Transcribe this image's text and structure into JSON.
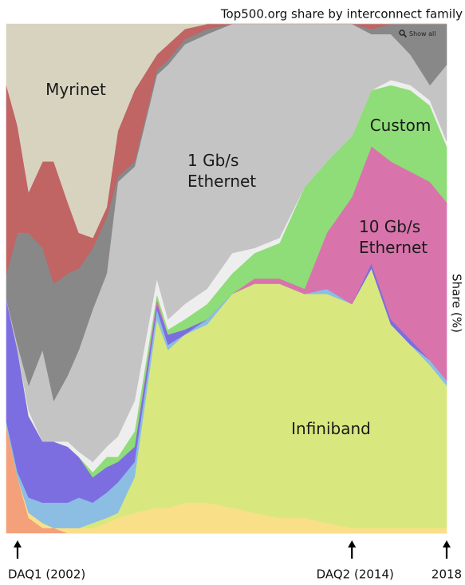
{
  "chart_data": {
    "type": "area",
    "stacked": true,
    "title": "Top500.org share by interconnect family",
    "ylabel": "Share (%)",
    "button": "Show all",
    "x": [
      2001.6,
      2002.0,
      2002.4,
      2002.9,
      2003.3,
      2003.8,
      2004.2,
      2004.7,
      2005.2,
      2005.6,
      2006.2,
      2007.0,
      2007.4,
      2008.0,
      2008.8,
      2009.7,
      2010.5,
      2011.4,
      2012.3,
      2013.1,
      2014.0,
      2014.7,
      2015.4,
      2016.1,
      2016.8,
      2017.4
    ],
    "xlim": [
      2001.6,
      2017.4
    ],
    "ylim": [
      0,
      100
    ],
    "series": [
      {
        "color": "#f4a07a",
        "values": [
          21,
          11,
          3,
          1,
          1,
          0,
          0,
          0,
          0,
          0,
          0,
          0,
          0,
          0,
          0,
          0,
          0,
          0,
          0,
          0,
          0,
          0,
          0,
          0,
          0,
          0
        ]
      },
      {
        "color": "#f9df88",
        "values": [
          0,
          0,
          1,
          1,
          0,
          1,
          1,
          1,
          2,
          3,
          4,
          5,
          5,
          6,
          6,
          5,
          4,
          3,
          3,
          2,
          1,
          1,
          1,
          1,
          1,
          1
        ]
      },
      {
        "name": "Infiniband",
        "color": "#d8e87e",
        "values": [
          0,
          0,
          0,
          0,
          0,
          0,
          0,
          1,
          1,
          1,
          7,
          37,
          31,
          33,
          35,
          42,
          45,
          46,
          44,
          45,
          44,
          51,
          40,
          36,
          32,
          28
        ]
      },
      {
        "color": "#8cbde3",
        "values": [
          1,
          1,
          3,
          4,
          5,
          5,
          6,
          4,
          5,
          6,
          3,
          2,
          1,
          0,
          1,
          0,
          0,
          0,
          0,
          1,
          0,
          0,
          0,
          0,
          1,
          1
        ]
      },
      {
        "color": "#7c6ee0",
        "values": [
          24,
          24,
          16,
          12,
          12,
          11,
          8,
          5,
          5,
          4,
          3,
          1,
          2,
          1,
          0,
          0,
          0,
          0,
          0,
          0,
          0,
          1,
          1,
          1,
          0,
          0
        ]
      },
      {
        "name": "10 Gb/s Ethernet",
        "color": "#d874ab",
        "values": [
          0,
          0,
          0,
          0,
          0,
          0,
          0,
          0,
          0,
          0,
          0,
          1,
          0,
          0,
          0,
          0,
          1,
          1,
          1,
          11,
          21,
          23,
          31,
          33,
          35,
          35
        ]
      },
      {
        "name": "Custom",
        "color": "#8edd78",
        "values": [
          0,
          0,
          0,
          0,
          0,
          0,
          0,
          1,
          2,
          1,
          3,
          1,
          1,
          2,
          3,
          4,
          5,
          7,
          20,
          14,
          12,
          11,
          15,
          16,
          15,
          11
        ]
      },
      {
        "color": "#eeeeee",
        "values": [
          0,
          0,
          1,
          0,
          0,
          1,
          1,
          2,
          2,
          4,
          6,
          3,
          2,
          3,
          3,
          4,
          1,
          1,
          0,
          0,
          0,
          0,
          1,
          1,
          1,
          1
        ]
      },
      {
        "name": "1 Gb/s Ethernet",
        "color": "#c4c4c4",
        "values": [
          0,
          1,
          5,
          18,
          8,
          13,
          20,
          30,
          34,
          50,
          46,
          40,
          50,
          51,
          50,
          45,
          44,
          42,
          32,
          27,
          22,
          11,
          9,
          6,
          3,
          15
        ]
      },
      {
        "color": "#888888",
        "values": [
          5,
          22,
          30,
          20,
          23,
          20,
          16,
          12,
          11,
          1,
          1,
          1,
          1,
          1,
          1,
          0,
          0,
          0,
          0,
          0,
          0,
          1,
          2,
          6,
          12,
          8
        ]
      },
      {
        "color": "#c06464",
        "values": [
          37,
          21,
          8,
          17,
          24,
          14,
          7,
          2,
          2,
          9,
          14,
          3,
          3,
          2,
          1,
          0,
          0,
          0,
          0,
          0,
          0,
          1,
          0,
          0,
          0,
          0
        ]
      },
      {
        "name": "Myrinet",
        "color": "#d8d3bf",
        "values": [
          12,
          20,
          33,
          27,
          27,
          35,
          41,
          42,
          36,
          21,
          13,
          6,
          4,
          1,
          0,
          0,
          0,
          0,
          0,
          0,
          0,
          0,
          0,
          0,
          0,
          0
        ]
      }
    ],
    "annotations": [
      {
        "text": "DAQ1 (2002)",
        "x": 2002
      },
      {
        "text": "DAQ2 (2014)",
        "x": 2014
      },
      {
        "text": "2018",
        "x": 2017.4
      }
    ]
  }
}
